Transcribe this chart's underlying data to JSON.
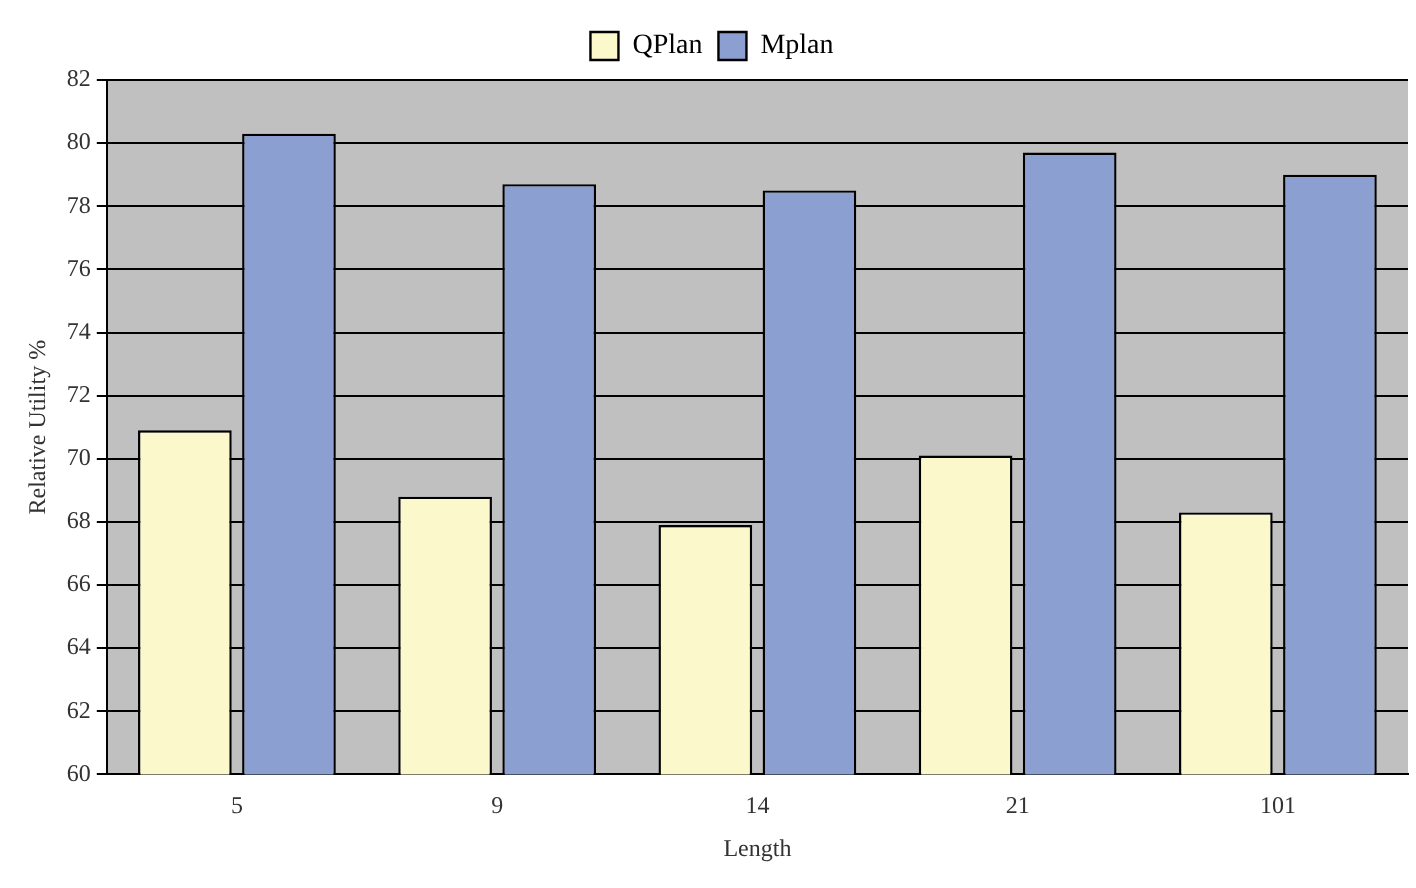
{
  "chart_data": {
    "type": "bar",
    "xlabel": "Length",
    "ylabel": "Relative Utility %",
    "categories": [
      "5",
      "9",
      "14",
      "21",
      "101"
    ],
    "series": [
      {
        "name": "QPlan",
        "color": "#fbf8cc",
        "values": [
          70.9,
          68.8,
          67.9,
          70.1,
          68.3
        ]
      },
      {
        "name": "Mplan",
        "color": "#8c9fd1",
        "values": [
          80.3,
          78.7,
          78.5,
          79.7,
          79.0
        ]
      }
    ],
    "ylim": [
      60,
      82
    ],
    "yticks": [
      60,
      62,
      64,
      66,
      68,
      70,
      72,
      74,
      76,
      78,
      80,
      82
    ],
    "grid": "y",
    "legend": "top"
  }
}
